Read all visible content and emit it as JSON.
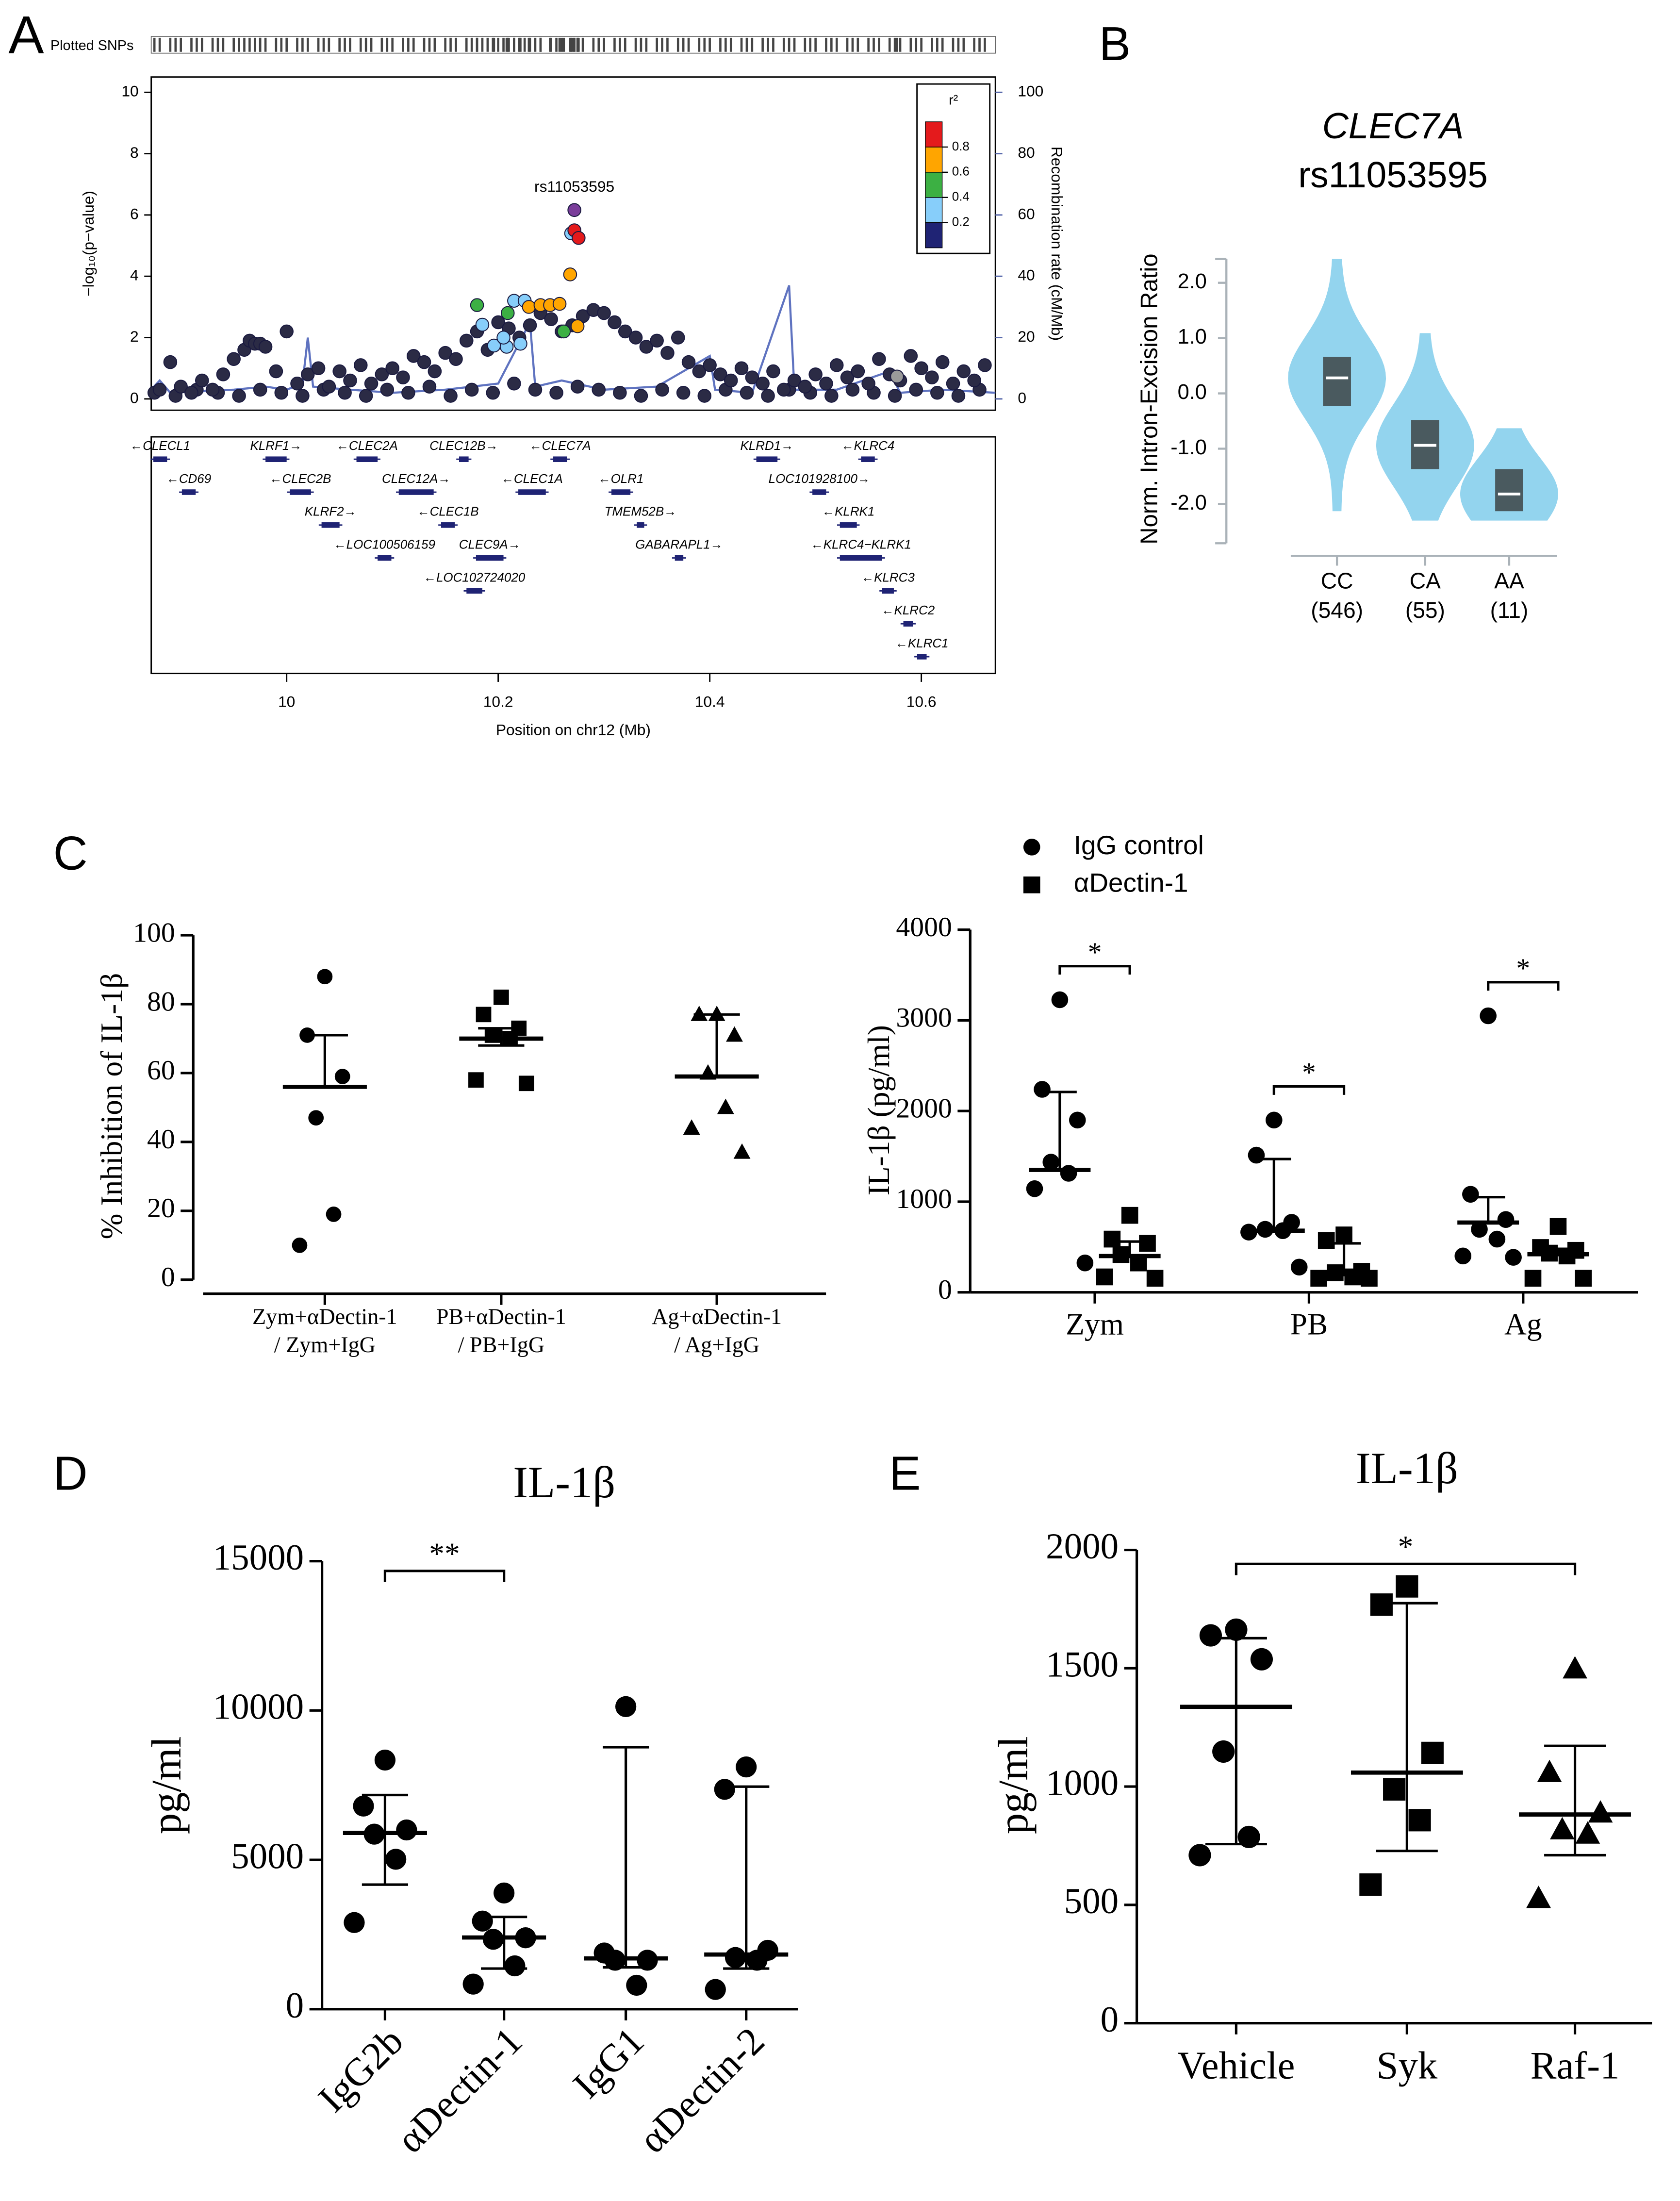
{
  "chart_data": [
    {
      "type": "locus",
      "panel": "A",
      "rug_label": "Plotted SNPs",
      "ylabel": "−log₁₀(p−value)",
      "y2label": "Recombination rate (cM/Mb)",
      "xlabel": "Position on chr12 (Mb)",
      "xlim": [
        9.872,
        10.67
      ],
      "xticks": [
        10,
        10.2,
        10.4,
        10.6
      ],
      "ylim": [
        -0.37,
        10.5
      ],
      "yticks": [
        0,
        2,
        4,
        6,
        8,
        10
      ],
      "y2lim": [
        -3.7,
        105
      ],
      "y2ticks": [
        0,
        20,
        40,
        60,
        80,
        100
      ],
      "legend": {
        "title": "r²",
        "ticks": [
          0.2,
          0.4,
          0.6,
          0.8
        ],
        "colors": [
          "#1f2374",
          "#87cefa",
          "#3cb043",
          "#ffa500",
          "#e41a1c"
        ]
      },
      "series": [
        {
          "color": "#2b2b45",
          "x": [
            9.875,
            9.895,
            9.915,
            9.935,
            9.955,
            9.975,
            9.995,
            10.015,
            10.035,
            10.055,
            10.075,
            10.095,
            10.115,
            10.135,
            10.155,
            10.175,
            10.195,
            10.215,
            10.235,
            10.255,
            10.275,
            10.295,
            10.315,
            10.335,
            10.355,
            10.375,
            10.395,
            10.415,
            10.435,
            10.455,
            10.475,
            10.495,
            10.515,
            10.535,
            10.555,
            10.575,
            10.595,
            10.615,
            10.635,
            10.655
          ],
          "values": [
            0.2,
            0.1,
            0.3,
            0.2,
            0.1,
            0.3,
            0.2,
            0.1,
            0.3,
            0.2,
            0.1,
            0.3,
            0.2,
            0.4,
            0.1,
            0.3,
            0.2,
            0.5,
            0.3,
            0.2,
            0.4,
            0.3,
            0.2,
            0.1,
            0.3,
            0.2,
            0.1,
            0.3,
            0.2,
            0.1,
            0.3,
            0.2,
            0.1,
            0.3,
            0.2,
            0.1,
            0.3,
            0.2,
            0.1,
            0.3
          ]
        },
        {
          "color": "#2b2b45",
          "x": [
            9.88,
            9.89,
            9.9,
            9.91,
            9.92,
            9.93,
            9.94,
            9.95,
            9.96,
            9.965,
            9.97,
            9.975,
            9.98,
            9.99,
            10.0,
            10.01,
            10.02,
            10.03,
            10.04,
            10.05,
            10.06,
            10.07,
            10.08,
            10.09,
            10.1,
            10.11,
            10.12,
            10.13,
            10.14,
            10.15,
            10.16,
            10.17,
            10.18,
            10.19,
            10.2,
            10.21,
            10.22,
            10.23,
            10.24,
            10.25,
            10.26,
            10.27,
            10.28,
            10.29,
            10.3,
            10.31,
            10.32,
            10.33,
            10.34,
            10.35,
            10.36,
            10.37,
            10.38,
            10.39,
            10.4,
            10.41,
            10.42,
            10.43,
            10.44,
            10.45,
            10.46,
            10.47,
            10.48,
            10.49,
            10.5,
            10.51,
            10.52,
            10.53,
            10.54,
            10.55,
            10.56,
            10.57,
            10.58,
            10.59,
            10.6,
            10.61,
            10.62,
            10.63,
            10.64,
            10.65,
            10.66
          ],
          "values": [
            0.3,
            1.2,
            0.4,
            0.2,
            0.6,
            0.3,
            0.8,
            1.3,
            1.6,
            1.9,
            1.8,
            1.8,
            1.7,
            0.9,
            2.2,
            0.5,
            0.8,
            1.0,
            0.4,
            0.9,
            0.6,
            1.1,
            0.5,
            0.8,
            1.0,
            0.7,
            1.4,
            1.2,
            0.9,
            1.5,
            1.3,
            1.9,
            2.2,
            1.6,
            2.5,
            2.3,
            2.0,
            2.4,
            2.8,
            2.6,
            2.2,
            2.4,
            2.7,
            2.9,
            2.8,
            2.5,
            2.2,
            2.0,
            1.7,
            1.9,
            1.5,
            2.0,
            1.2,
            0.9,
            1.1,
            0.8,
            0.6,
            1.0,
            0.7,
            0.5,
            0.9,
            0.3,
            0.6,
            0.4,
            0.8,
            0.5,
            1.1,
            0.7,
            0.9,
            0.5,
            1.3,
            0.8,
            0.6,
            1.4,
            1.0,
            0.7,
            1.2,
            0.5,
            0.9,
            0.6,
            1.1
          ]
        },
        {
          "color": "#9a9a9a",
          "x": [
            10.577
          ],
          "values": [
            0.73
          ]
        },
        {
          "color": "#87cefa",
          "x": [
            10.185,
            10.196,
            10.215,
            10.208,
            10.221,
            10.225,
            10.205,
            10.269
          ],
          "values": [
            2.42,
            1.74,
            3.2,
            1.7,
            1.8,
            3.2,
            2.0,
            5.4
          ]
        },
        {
          "color": "#3cb043",
          "x": [
            10.18,
            10.209,
            10.262
          ],
          "values": [
            3.06,
            2.8,
            2.2
          ]
        },
        {
          "color": "#ffa500",
          "x": [
            10.229,
            10.24,
            10.249,
            10.258,
            10.268,
            10.275
          ],
          "values": [
            3.0,
            3.06,
            3.06,
            3.1,
            4.06,
            2.37
          ]
        },
        {
          "color": "#e41a1c",
          "x": [
            10.272,
            10.276
          ],
          "values": [
            5.5,
            5.25
          ]
        },
        {
          "color": "#7a3d9a",
          "label": "rs11053595",
          "x": [
            10.272
          ],
          "values": [
            6.16
          ]
        }
      ],
      "recombination": {
        "color": "#5f73c0",
        "x": [
          9.872,
          9.88,
          9.89,
          9.95,
          9.98,
          10.0,
          10.015,
          10.02,
          10.025,
          10.06,
          10.1,
          10.15,
          10.2,
          10.23,
          10.235,
          10.26,
          10.3,
          10.35,
          10.4,
          10.405,
          10.44,
          10.475,
          10.48,
          10.52,
          10.57,
          10.58,
          10.62,
          10.67
        ],
        "values": [
          3,
          6,
          2,
          3,
          4,
          3,
          5,
          20,
          4,
          3,
          2,
          3,
          5,
          25,
          4,
          6,
          3,
          4,
          14,
          3,
          2,
          37,
          3,
          3,
          9,
          2,
          3,
          2
        ]
      },
      "genes": [
        {
          "label": "←CLECL1",
          "start": 9.874,
          "end": 9.887
        },
        {
          "label": "KLRF1→",
          "start": 9.98,
          "end": 10.0
        },
        {
          "label": "←CLEC2A",
          "start": 10.066,
          "end": 10.086
        },
        {
          "label": "CLEC12B→",
          "start": 10.163,
          "end": 10.172
        },
        {
          "label": "←CLEC7A",
          "start": 10.252,
          "end": 10.265
        },
        {
          "label": "KLRD1→",
          "start": 10.444,
          "end": 10.464
        },
        {
          "label": "←KLRC4",
          "start": 10.543,
          "end": 10.556
        },
        {
          "label": "←CD69",
          "start": 9.901,
          "end": 9.914
        },
        {
          "label": "←CLEC2B",
          "start": 10.003,
          "end": 10.023
        },
        {
          "label": "CLEC12A→",
          "start": 10.106,
          "end": 10.139
        },
        {
          "label": "←CLEC1A",
          "start": 10.219,
          "end": 10.245
        },
        {
          "label": "←OLR1",
          "start": 10.307,
          "end": 10.325
        },
        {
          "label": "LOC101928100→",
          "start": 10.497,
          "end": 10.51
        },
        {
          "label": "KLRF2→",
          "start": 10.033,
          "end": 10.05
        },
        {
          "label": "←CLEC1B",
          "start": 10.146,
          "end": 10.159
        },
        {
          "label": "TMEM52B→",
          "start": 10.331,
          "end": 10.338
        },
        {
          "label": "←KLRK1",
          "start": 10.523,
          "end": 10.539
        },
        {
          "label": "←LOC100506159",
          "start": 10.086,
          "end": 10.099
        },
        {
          "label": "CLEC9A→",
          "start": 10.179,
          "end": 10.205
        },
        {
          "label": "GABARAPL1→",
          "start": 10.367,
          "end": 10.375
        },
        {
          "label": "←KLRC4−KLRK1",
          "start": 10.523,
          "end": 10.563
        },
        {
          "label": "←LOC102724020",
          "start": 10.17,
          "end": 10.185
        },
        {
          "label": "←KLRC3",
          "start": 10.563,
          "end": 10.574
        },
        {
          "label": "←KLRC2",
          "start": 10.583,
          "end": 10.592
        },
        {
          "label": "←KLRC1",
          "start": 10.596,
          "end": 10.605
        }
      ]
    },
    {
      "type": "violin",
      "panel": "B",
      "title": "CLEC7A",
      "subtitle": "rs11053595",
      "ylabel": "Norm. Intron-Excision Ratio",
      "categories": [
        "CC",
        "CA",
        "AA"
      ],
      "counts": [
        "(546)",
        "(55)",
        "(11)"
      ],
      "ylim": [
        -2.71,
        2.43
      ],
      "yticks": [
        {
          "value": 2,
          "label": "2.0"
        },
        {
          "value": 1,
          "label": "1.0"
        },
        {
          "value": 0,
          "label": "0.0"
        },
        {
          "value": -1,
          "label": "-1.0"
        },
        {
          "value": -2,
          "label": "-2.0"
        }
      ],
      "color": "#93d4ee",
      "box_color": "#4a5a5f",
      "min": [
        -2.13,
        -2.3,
        -2.3
      ],
      "q1": [
        -0.23,
        -1.37,
        -2.13
      ],
      "median": [
        0.28,
        -0.94,
        -1.82
      ],
      "q3": [
        0.66,
        -0.48,
        -1.37
      ],
      "max": [
        2.43,
        1.09,
        -0.63
      ]
    },
    {
      "type": "dot",
      "panel": "C",
      "ylabel": "% Inhibition of IL-1β",
      "categories": [
        [
          "Zym+αDectin-1",
          "/ Zym+IgG"
        ],
        [
          "PB+αDectin-1",
          "/ PB+IgG"
        ],
        [
          "Ag+αDectin-1",
          "/ Ag+IgG"
        ]
      ],
      "markers": [
        "circle",
        "square",
        "triangle"
      ],
      "ylim": [
        0,
        100
      ],
      "yticks": [
        0,
        20,
        40,
        60,
        80,
        100
      ],
      "series": [
        {
          "values": [
            [
              88,
              71,
              59,
              47,
              19,
              10
            ],
            [
              82,
              77,
              73,
              71,
              70,
              58,
              57
            ],
            [
              77,
              77,
              71,
              60,
              50,
              44,
              37
            ]
          ],
          "center": [
            56,
            70,
            59
          ],
          "low": [
            null,
            68,
            null
          ],
          "high": [
            71,
            73,
            77
          ]
        }
      ]
    },
    {
      "type": "dot",
      "ylabel": "IL-1β (pg/ml)",
      "categories": [
        "Zym",
        "PB",
        "Ag"
      ],
      "ylim": [
        0,
        4000
      ],
      "yticks": [
        0,
        1000,
        2000,
        3000,
        4000
      ],
      "significance": [
        "*",
        "*",
        "*"
      ],
      "series": [
        {
          "name": "IgG control",
          "marker": "circle",
          "values": [
            [
              3227,
              2239,
              1900,
              1436,
              1313,
              1143,
              324
            ],
            [
              1900,
              1513,
              772,
              695,
              680,
              664,
              278
            ],
            [
              3050,
              1081,
              803,
              695,
              587,
              401,
              386
            ]
          ],
          "center": [
            1350,
            680,
            770
          ],
          "high": [
            2210,
            1470,
            1050
          ]
        },
        {
          "name": "αDectin-1",
          "marker": "square",
          "values": [
            [
              849,
              587,
              540,
              417,
              324,
              170,
              155
            ],
            [
              633,
              571,
              232,
              216,
              170,
              155,
              155
            ],
            [
              726,
              494,
              463,
              432,
              401,
              155,
              155
            ]
          ],
          "center": [
            400,
            200,
            420
          ],
          "high": [
            560,
            540,
            480
          ]
        }
      ]
    },
    {
      "type": "dot",
      "panel": "D",
      "title": "IL-1β",
      "ylabel": "pg/ml",
      "categories": [
        "IgG2b",
        "αDectin-1",
        "IgG1",
        "αDectin-2"
      ],
      "markers": [
        "circle",
        "circle",
        "circle",
        "circle"
      ],
      "ylim": [
        0,
        15000
      ],
      "yticks": [
        0,
        5000,
        10000,
        15000
      ],
      "significance": [
        {
          "text": "**",
          "between": [
            "IgG2b",
            "αDectin-1"
          ]
        }
      ],
      "series": [
        {
          "values": [
            [
              8340,
              6800,
              6000,
              5860,
              5020,
              2900
            ],
            [
              3890,
              2950,
              2390,
              2340,
              1450,
              840
            ],
            [
              10130,
              1880,
              1640,
              1640,
              800
            ],
            [
              8110,
              7360,
              1970,
              1730,
              1640,
              660
            ]
          ],
          "center": [
            5900,
            2400,
            1700,
            1830
          ],
          "low": [
            4170,
            1360,
            1400,
            1360
          ],
          "high": [
            7170,
            3090,
            8770,
            7450
          ]
        }
      ]
    },
    {
      "type": "dot",
      "panel": "E",
      "title": "IL-1β",
      "ylabel": "pg/ml",
      "categories": [
        "Vehicle",
        "Syk",
        "Raf-1"
      ],
      "markers": [
        "circle",
        "square",
        "triangle"
      ],
      "ylim": [
        0,
        2000
      ],
      "yticks": [
        0,
        500,
        1000,
        1500,
        2000
      ],
      "significance": [
        {
          "text": "*",
          "between": [
            "Vehicle",
            "Raf-1"
          ]
        }
      ],
      "series": [
        {
          "values": [
            [
              1663,
              1639,
              1538,
              1148,
              787,
              710
            ],
            [
              1846,
              1769,
              1142,
              988,
              858,
              586
            ],
            [
              1497,
              1059,
              888,
              817,
              799,
              527
            ]
          ],
          "center": [
            1337,
            1059,
            882
          ],
          "low": [
            757,
            728,
            710
          ],
          "high": [
            1627,
            1775,
            1172
          ]
        }
      ]
    }
  ]
}
